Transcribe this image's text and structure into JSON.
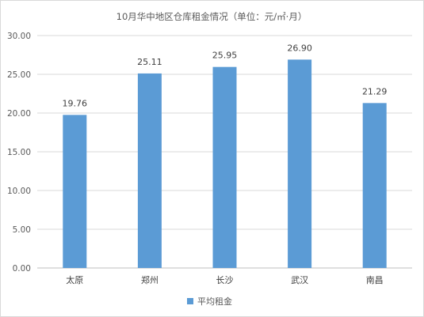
{
  "chart_data": {
    "type": "bar",
    "title": "10月华中地区仓库租金情况（单位：元/㎡·月）",
    "categories": [
      "太原",
      "郑州",
      "长沙",
      "武汉",
      "南昌"
    ],
    "series": [
      {
        "name": "平均租金",
        "values": [
          19.76,
          25.11,
          25.95,
          26.9,
          21.29
        ],
        "data_labels": [
          "19.76",
          "25.11",
          "25.95",
          "26.90",
          "21.29"
        ],
        "color": "#5b9bd5"
      }
    ],
    "ylim": [
      0,
      30
    ],
    "yticks": [
      "0.00",
      "5.00",
      "10.00",
      "15.00",
      "20.00",
      "25.00",
      "30.00"
    ],
    "ytick_values": [
      0,
      5,
      10,
      15,
      20,
      25,
      30
    ],
    "xlabel": "",
    "ylabel": "",
    "grid": true,
    "legend_position": "bottom"
  }
}
